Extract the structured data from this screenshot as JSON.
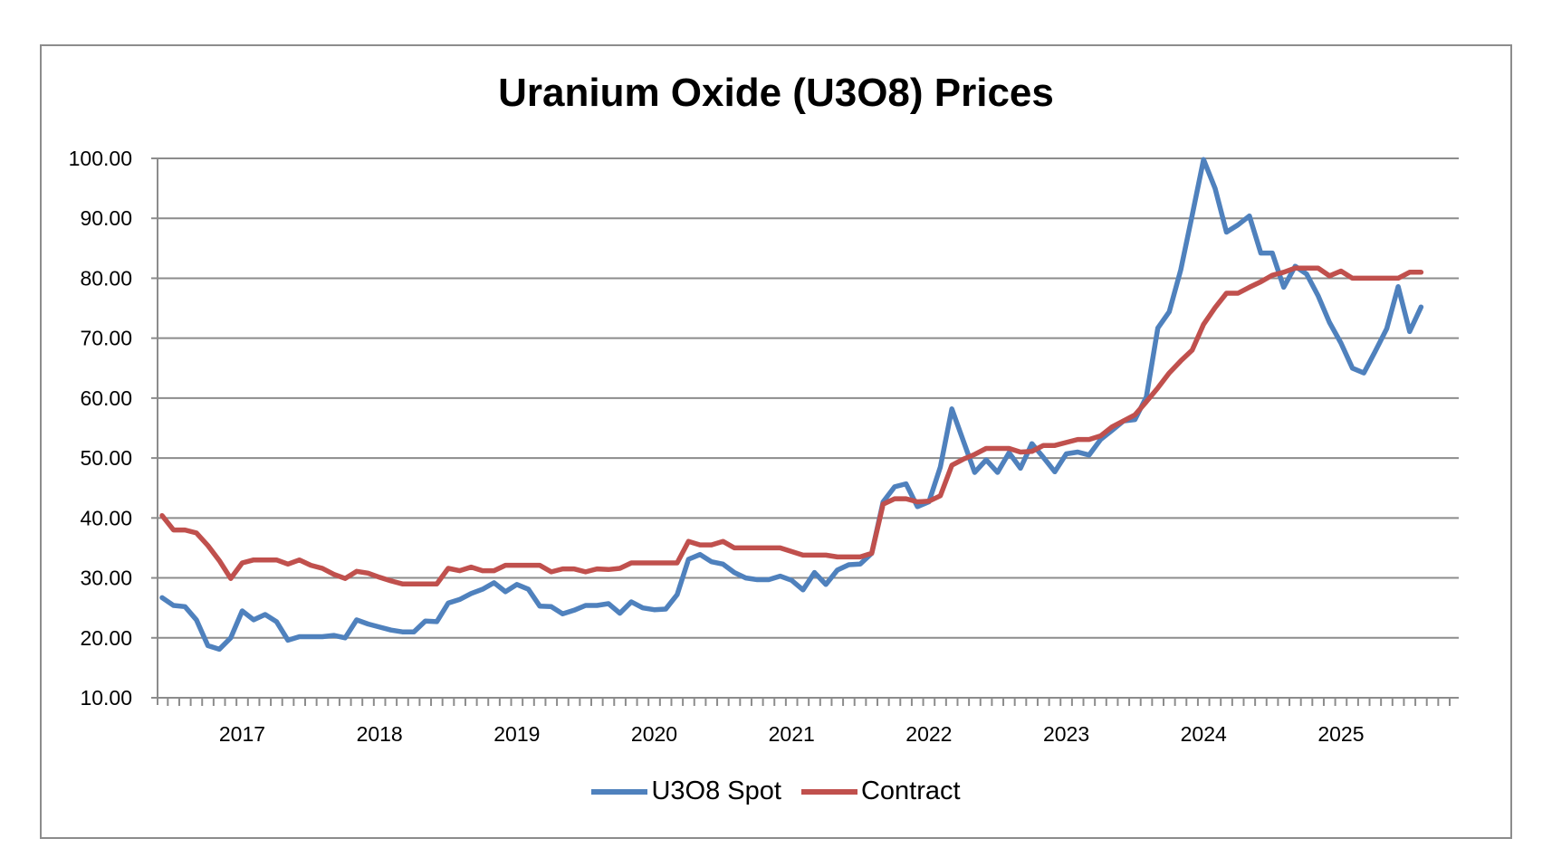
{
  "chart_data": {
    "type": "line",
    "title": "Uranium Oxide (U3O8) Prices",
    "xlabel": "",
    "ylabel": "",
    "ylim": [
      10,
      100
    ],
    "yticks": [
      "10.00",
      "20.00",
      "30.00",
      "40.00",
      "50.00",
      "60.00",
      "70.00",
      "80.00",
      "90.00",
      "100.00"
    ],
    "x_start": "2016-06",
    "x_frequency": "monthly",
    "xtick_labels": [
      "2017",
      "2018",
      "2019",
      "2020",
      "2021",
      "2022",
      "2023",
      "2024",
      "2025"
    ],
    "grid": true,
    "legend_position": "bottom",
    "series": [
      {
        "name": "U3O8 Spot",
        "color": "#4F81BD",
        "values": [
          26.7,
          25.4,
          25.2,
          23.0,
          18.7,
          18.1,
          20.0,
          24.5,
          23.0,
          23.9,
          22.7,
          19.6,
          20.2,
          20.2,
          20.2,
          20.4,
          20.0,
          23.0,
          22.3,
          21.8,
          21.3,
          21.0,
          21.0,
          22.8,
          22.7,
          25.8,
          26.4,
          27.4,
          28.1,
          29.2,
          27.7,
          28.9,
          28.1,
          25.3,
          25.2,
          24.0,
          24.6,
          25.4,
          25.4,
          25.7,
          24.1,
          26.0,
          25.0,
          24.7,
          24.8,
          27.2,
          33.1,
          33.9,
          32.7,
          32.3,
          30.9,
          30.0,
          29.7,
          29.7,
          30.3,
          29.6,
          28.0,
          30.9,
          28.9,
          31.3,
          32.2,
          32.3,
          34.1,
          42.7,
          45.2,
          45.7,
          41.9,
          42.7,
          48.5,
          58.2,
          52.9,
          47.6,
          49.7,
          47.6,
          50.9,
          48.3,
          52.4,
          50.1,
          47.7,
          50.7,
          51.0,
          50.5,
          53.1,
          54.6,
          56.2,
          56.4,
          60.2,
          71.7,
          74.4,
          81.4,
          90.5,
          99.8,
          95.0,
          87.7,
          88.9,
          90.4,
          84.2,
          84.2,
          78.5,
          82.0,
          80.7,
          77.1,
          72.6,
          69.2,
          65.0,
          64.2,
          67.8,
          71.6,
          78.6,
          71.1,
          75.2
        ]
      },
      {
        "name": "Contract",
        "color": "#C0504D",
        "values": [
          40.4,
          38.0,
          38.0,
          37.5,
          35.4,
          32.9,
          29.9,
          32.5,
          33.0,
          33.0,
          33.0,
          32.3,
          33.0,
          32.1,
          31.6,
          30.6,
          29.9,
          31.1,
          30.8,
          30.1,
          29.5,
          29.0,
          29.0,
          29.0,
          29.0,
          31.6,
          31.2,
          31.8,
          31.2,
          31.2,
          32.1,
          32.1,
          32.1,
          32.1,
          31.0,
          31.5,
          31.5,
          31.0,
          31.5,
          31.4,
          31.6,
          32.5,
          32.5,
          32.5,
          32.5,
          32.5,
          36.1,
          35.5,
          35.5,
          36.1,
          35.0,
          35.0,
          35.0,
          35.0,
          35.0,
          34.4,
          33.8,
          33.8,
          33.8,
          33.5,
          33.5,
          33.5,
          34.1,
          42.3,
          43.2,
          43.2,
          42.7,
          42.8,
          43.7,
          48.8,
          49.8,
          50.6,
          51.6,
          51.6,
          51.6,
          51.0,
          51.1,
          52.1,
          52.1,
          52.6,
          53.1,
          53.1,
          53.7,
          55.2,
          56.2,
          57.2,
          59.4,
          61.7,
          64.2,
          66.2,
          68.0,
          72.3,
          75.1,
          77.5,
          77.5,
          78.5,
          79.4,
          80.5,
          81.0,
          81.7,
          81.7,
          81.7,
          80.4,
          81.2,
          80.0,
          80.0,
          80.0,
          80.0,
          80.0,
          81.0,
          81.0
        ]
      }
    ]
  }
}
